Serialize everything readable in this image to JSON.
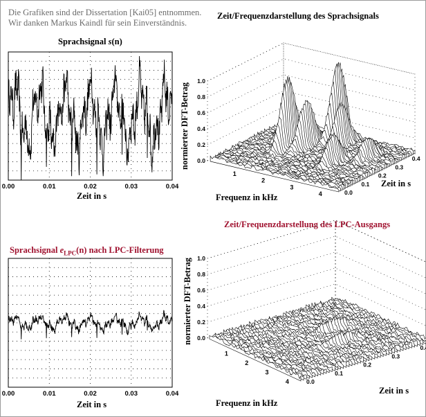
{
  "credits": {
    "line1": "Die Grafiken sind der Dissertation [Kai05] entnommen.",
    "line2": "Wir danken Markus Kaindl  für sein Einverständnis."
  },
  "colors": {
    "accent_red": "#a0122f",
    "frame": "#9a9a9a"
  },
  "chart_data": [
    {
      "type": "line",
      "title_prefix": "Sprachsignal ",
      "title_symbol": "s",
      "title_arg": "(n)",
      "xlabel": "Zeit in s",
      "x_ticks": [
        "0.00",
        "0.01",
        "0.02",
        "0.03",
        "0.04"
      ],
      "xlim": [
        0,
        0.04
      ],
      "ylim": [
        -1,
        1
      ],
      "grid": "dotted",
      "series": [
        {
          "x_range": [
            0,
            0.04
          ],
          "amplitude": 0.85,
          "periods": 6.5
        }
      ]
    },
    {
      "type": "surface",
      "title": "Zeit/Frequenzdarstellung des Sprachsignals",
      "zlabel": "normierter DFT-Betrag",
      "z_ticks": [
        "0.0",
        "0.2",
        "0.4",
        "0.6",
        "0.8",
        "1.0"
      ],
      "xlabel": "Frequenz in kHz",
      "x_ticks": [
        "1",
        "2",
        "3",
        "4"
      ],
      "ylabel": "Zeit in s",
      "y_ticks": [
        "0.0",
        "0.1",
        "0.2",
        "0.3",
        "0.4"
      ],
      "zlim": [
        0,
        1
      ],
      "peaks": [
        {
          "f": 1.0,
          "t": 0.3,
          "z": 0.45
        },
        {
          "f": 1.4,
          "t": 0.24,
          "z": 0.9
        },
        {
          "f": 1.8,
          "t": 0.28,
          "z": 0.6
        },
        {
          "f": 2.2,
          "t": 0.4,
          "z": 1.0
        },
        {
          "f": 2.6,
          "t": 0.35,
          "z": 0.55
        },
        {
          "f": 3.2,
          "t": 0.2,
          "z": 0.35
        },
        {
          "f": 3.8,
          "t": 0.3,
          "z": 0.25
        }
      ]
    },
    {
      "type": "line",
      "title_prefix": "Sprachsignal ",
      "title_symbol": "e",
      "title_sub": "LPC",
      "title_arg": "(n)",
      "title_suffix": " nach LPC-Filterung",
      "xlabel": "Zeit in s",
      "x_ticks": [
        "0.00",
        "0.01",
        "0.02",
        "0.03",
        "0.04"
      ],
      "xlim": [
        0,
        0.04
      ],
      "ylim": [
        -1,
        1
      ],
      "grid": "dotted",
      "series": [
        {
          "x_range": [
            0,
            0.04
          ],
          "amplitude": 0.18,
          "periods": 6.5
        }
      ]
    },
    {
      "type": "surface",
      "title": "Zeit/Frequenzdarstellung des LPC-Ausgangs",
      "zlabel": "normierter DFT-Betrag",
      "z_ticks": [
        "0.0",
        "0.2",
        "0.4",
        "0.6",
        "0.8",
        "1.0"
      ],
      "xlabel": "Frequenz in kHz",
      "x_ticks": [
        "1",
        "2",
        "3",
        "4"
      ],
      "ylabel": "Zeit in s",
      "y_ticks": [
        "0.0",
        "0.1",
        "0.2",
        "0.3",
        "0.4"
      ],
      "zlim": [
        0,
        1
      ],
      "peaks": [
        {
          "f": 2.0,
          "t": 0.3,
          "z": 0.12
        },
        {
          "f": 3.0,
          "t": 0.25,
          "z": 0.1
        }
      ]
    }
  ]
}
